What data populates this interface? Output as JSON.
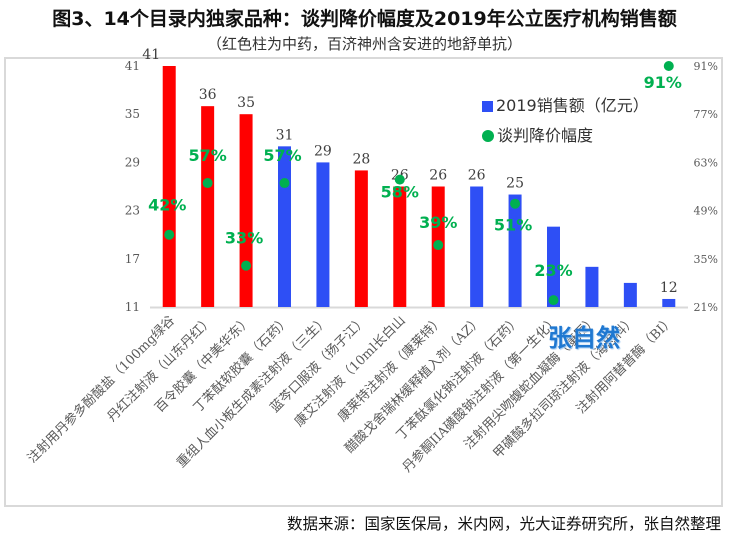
{
  "header": {
    "title": "图3、14个目录内独家品种：谈判降价幅度及2019年公立医疗机构销售额",
    "subtitle": "（红色柱为中药，百济神州含安进的地舒单抗）"
  },
  "legend": {
    "sales_label": "2019销售额（亿元）",
    "discount_label": "谈判降价幅度"
  },
  "watermark": "张自然",
  "source": "数据来源：国家医保局，米内网，光大证券研究所，张自然整理",
  "colors": {
    "tcm_bar": "#ff0000",
    "western_bar": "#2e4ff5",
    "discount_dot": "#00b050",
    "axis_text": "#595959",
    "watermark": "#1f78d1"
  },
  "chart_data": {
    "type": "bar",
    "title": "图3、14个目录内独家品种：谈判降价幅度及2019年公立医疗机构销售额",
    "subtitle": "（红色柱为中药，百济神州含安进的地舒单抗）",
    "xlabel": "",
    "ylabel": "",
    "y_left_ticks": [
      "11",
      "17",
      "23",
      "29",
      "35",
      "41"
    ],
    "y_right_ticks": [
      "21%",
      "35%",
      "49%",
      "63%",
      "77%",
      "91%"
    ],
    "ylim_left": [
      11,
      41
    ],
    "ylim_right": [
      0.21,
      0.91
    ],
    "grid": false,
    "legend_position": "upper-right",
    "categories": [
      "注射用丹参多酚酸盐（100mg绿谷",
      "丹红注射液（山东丹红）",
      "百令胶囊（中美华东）",
      "丁苯酞软胶囊（石药）",
      "重组人血小板生成素注射液（三生）",
      "蓝芩口服液（扬子江）",
      "康艾注射液（10ml长白山",
      "康莱特注射液（康莱特）",
      "醋酸戈舍瑞林缓释植入剂（AZ）",
      "丁苯酞氯化钠注射液（石药）",
      "丹参酮IIA磺酸钠注射液（第一生化）",
      "注射用尖吻蝮蛇血凝酶（康辰）",
      "甲磺酸多拉司琼注射液（海思科）",
      "注射用阿替普酶（BI）"
    ],
    "bar_types": [
      "tcm",
      "tcm",
      "tcm",
      "western",
      "western",
      "tcm",
      "tcm",
      "tcm",
      "western",
      "western",
      "western",
      "western",
      "western",
      "western"
    ],
    "series": [
      {
        "name": "2019销售额（亿元）",
        "type": "bar",
        "axis": "left",
        "values": [
          41,
          36,
          35,
          31,
          29,
          28,
          26,
          26,
          26,
          25,
          21,
          16,
          14,
          12
        ],
        "labels": [
          "41",
          "36",
          "35",
          "31",
          "29",
          "28",
          "26",
          "26",
          "26",
          "25",
          "",
          "",
          "",
          "12"
        ]
      },
      {
        "name": "谈判降价幅度",
        "type": "scatter",
        "axis": "right",
        "values": [
          0.42,
          0.57,
          0.33,
          0.57,
          null,
          null,
          0.58,
          0.39,
          null,
          0.51,
          0.23,
          null,
          null,
          0.91
        ],
        "labels": [
          "42%",
          "57%",
          "33%",
          "57%",
          "",
          "",
          "58%",
          "39%",
          "",
          "51%",
          "23%",
          "",
          "",
          "91%"
        ]
      }
    ]
  }
}
